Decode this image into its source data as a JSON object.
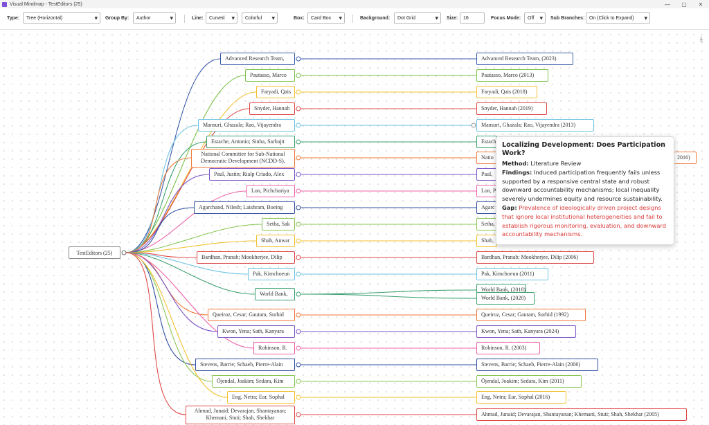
{
  "window": {
    "title": "Visual Mindmap - TestEditors (25)",
    "minimize": "—",
    "restore": "▢",
    "close": "✕"
  },
  "toolbar": {
    "type_label": "Type:",
    "type_value": "Tree (Horizontal)",
    "group_label": "Group By:",
    "group_value": "Author",
    "line_label": "Line:",
    "line_value": "Curved",
    "color_value": "Colorful",
    "box_label": "Box:",
    "box_value": "Card Box",
    "background_label": "Background:",
    "background_value": "Dot Grid",
    "size_label": "Size:",
    "size_value": "16",
    "focus_label": "Focus Mode:",
    "focus_value": "Off",
    "sub_label": "Sub Branches:",
    "sub_value": "On (Click to Expand)"
  },
  "canvas": {
    "download_icon": "download-icon"
  },
  "root": {
    "label": "TestEditors (25)"
  },
  "groups": [
    {
      "label": "Advanced Research Team,",
      "color": "#3b5ba9",
      "children": [
        "Advanced Research Team, (2023)"
      ]
    },
    {
      "label": "Pautasso, Marco",
      "color": "#7cc24a",
      "children": [
        "Pautasso, Marco (2013)"
      ]
    },
    {
      "label": "Faryadi, Qais",
      "color": "#f2c12e",
      "children": [
        "Faryadi, Qais (2018)"
      ]
    },
    {
      "label": "Snyder, Hannah",
      "color": "#e04848",
      "children": [
        "Snyder, Hannah (2019)"
      ]
    },
    {
      "label": "Mansuri, Ghazala; Rao, Vijayendra",
      "color": "#6cc3e3",
      "children": [
        "Mansuri, Ghazala; Rao, Vijayendra (2013)"
      ]
    },
    {
      "label": "Estache, Antonio; Sinha, Sarbajit",
      "color": "#3aa070",
      "children": [
        "Estach"
      ]
    },
    {
      "label": "National Committee for Sub-National Democratic Development (NCDD-S),",
      "color": "#f07a3a",
      "children": [
        "Natio",
        "2016)"
      ]
    },
    {
      "label": "Paul, Justin; Rialp Criado, Alex",
      "color": "#7a55c7",
      "children": [
        "Paul, "
      ]
    },
    {
      "label": "Lon, Pichchariya",
      "color": "#f062a8",
      "children": [
        "Lon, P"
      ]
    },
    {
      "label": "Agarchand, Nilesh; Laishram, Boeing",
      "color": "#2f4fa0",
      "children": [
        "Agarc"
      ]
    },
    {
      "label": "Setha, Sak",
      "color": "#88c653",
      "children": [
        "Setha,"
      ]
    },
    {
      "label": "Shah, Anwar",
      "color": "#f2c12e",
      "children": [
        "Shah,"
      ]
    },
    {
      "label": "Bardhan, Pranab; Mookherjee, Dilip",
      "color": "#e04848",
      "children": [
        "Bardhan, Pranab; Mookherjee, Dilip (2006)"
      ]
    },
    {
      "label": "Pak, Kimchoeun",
      "color": "#6cc3e3",
      "children": [
        "Pak, Kimchoeun (2011)"
      ]
    },
    {
      "label": "World Bank,",
      "color": "#3aa070",
      "children": [
        "World Bank, (2018)",
        "World Bank, (2020)"
      ]
    },
    {
      "label": "Queiroz, Cesar; Gautam, Surhid",
      "color": "#f07a3a",
      "children": [
        "Queiroz, Cesar; Gautam, Surhid (1992)"
      ]
    },
    {
      "label": "Kwon, Yena; Sath, Kanyara",
      "color": "#7a55c7",
      "children": [
        "Kwon, Yena; Sath, Kanyara (2024)"
      ]
    },
    {
      "label": "Robinson, R.",
      "color": "#f062a8",
      "children": [
        "Robinson, R. (2003)"
      ]
    },
    {
      "label": "Stevens, Barrie; Schaeb, Pierre-Alain",
      "color": "#2f4fa0",
      "children": [
        "Stevens, Barrie; Schaeb, Pierre-Alain (2006)"
      ]
    },
    {
      "label": "Öjendal, Joakim; Sedara, Kim",
      "color": "#88c653",
      "children": [
        "Öjendal, Joakim; Sedara, Kim (2011)"
      ]
    },
    {
      "label": "Eng, Netra; Ear, Sophal",
      "color": "#f2c12e",
      "children": [
        "Eng, Netra; Ear, Sophal (2016)"
      ]
    },
    {
      "label": "Ahmad, Junaid; Devarajan, Shantayanan; Khemani, Stuti; Shah, Shekhar",
      "color": "#e04848",
      "children": [
        "Ahmad, Junaid; Devarajan, Shantayanan; Khemani, Stuti; Shah, Shekhar (2005)"
      ]
    }
  ],
  "tooltip": {
    "title": "Localizing Development: Does Participation Work?",
    "method_label": "Method:",
    "method": "Literature Review",
    "findings_label": "Findings:",
    "findings": "Induced participation frequently fails unless supported by a responsive central state and robust downward accountability mechanisms; local inequality severely undermines equity and resource sustainability.",
    "gap_label": "Gap:",
    "gap": "Prevalence of ideologically driven project designs that ignore local institutional heterogeneities and fail to establish rigorous monitoring, evaluation, and downward accountability mechanisms."
  }
}
